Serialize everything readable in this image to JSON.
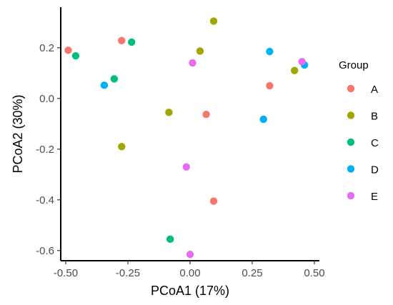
{
  "chart_data": {
    "type": "scatter",
    "xlabel": "PCoA1 (17%)",
    "ylabel": "PCoA2 (30%)",
    "xlim": [
      -0.52,
      0.52
    ],
    "ylim": [
      -0.64,
      0.36
    ],
    "x_ticks": [
      -0.5,
      -0.25,
      0.0,
      0.25,
      0.5
    ],
    "x_tick_labels": [
      "-0.50",
      "-0.25",
      "0.00",
      "0.25",
      "0.50"
    ],
    "y_ticks": [
      0.2,
      0.0,
      -0.2,
      -0.4,
      -0.6
    ],
    "y_tick_labels": [
      "0.2",
      "0.0",
      "-0.2",
      "-0.4",
      "-0.6"
    ],
    "grid": false,
    "legend": {
      "title": "Group",
      "position": "right"
    },
    "series": [
      {
        "name": "A",
        "color": "#F8766D",
        "points": [
          {
            "x": -0.49,
            "y": 0.19
          },
          {
            "x": -0.275,
            "y": 0.228
          },
          {
            "x": 0.065,
            "y": -0.063
          },
          {
            "x": 0.32,
            "y": 0.05
          },
          {
            "x": 0.095,
            "y": -0.405
          }
        ]
      },
      {
        "name": "B",
        "color": "#A3A500",
        "points": [
          {
            "x": 0.095,
            "y": 0.305
          },
          {
            "x": 0.04,
            "y": 0.187
          },
          {
            "x": -0.085,
            "y": -0.055
          },
          {
            "x": -0.275,
            "y": -0.19
          },
          {
            "x": 0.42,
            "y": 0.11
          }
        ]
      },
      {
        "name": "C",
        "color": "#00BF7D",
        "points": [
          {
            "x": -0.46,
            "y": 0.168
          },
          {
            "x": -0.235,
            "y": 0.222
          },
          {
            "x": -0.305,
            "y": 0.077
          },
          {
            "x": -0.08,
            "y": -0.555
          }
        ]
      },
      {
        "name": "D",
        "color": "#00B0F6",
        "points": [
          {
            "x": -0.345,
            "y": 0.052
          },
          {
            "x": 0.32,
            "y": 0.185
          },
          {
            "x": 0.46,
            "y": 0.132
          },
          {
            "x": 0.295,
            "y": -0.082
          }
        ]
      },
      {
        "name": "E",
        "color": "#E76BF3",
        "points": [
          {
            "x": 0.01,
            "y": 0.14
          },
          {
            "x": 0.45,
            "y": 0.145
          },
          {
            "x": -0.015,
            "y": -0.27
          },
          {
            "x": 0.0,
            "y": -0.615
          }
        ]
      }
    ]
  }
}
